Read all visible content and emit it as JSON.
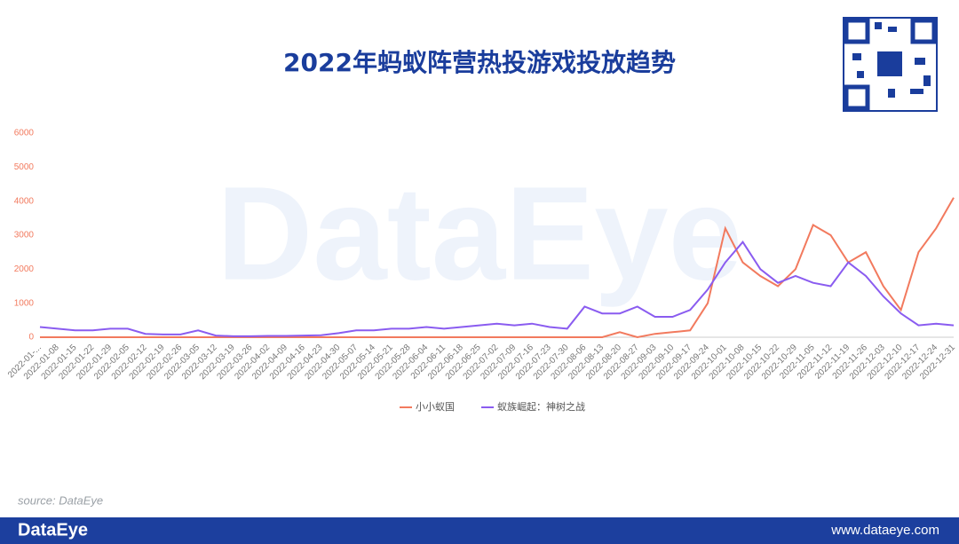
{
  "chart_data": {
    "type": "line",
    "title": "2022年蚂蚁阵营热投游戏投放趋势",
    "categories": [
      "2022-01-...",
      "2022-01-08",
      "2022-01-15",
      "2022-01-22",
      "2022-01-29",
      "2022-02-05",
      "2022-02-12",
      "2022-02-19",
      "2022-02-26",
      "2022-03-05",
      "2022-03-12",
      "2022-03-19",
      "2022-03-26",
      "2022-04-02",
      "2022-04-09",
      "2022-04-16",
      "2022-04-23",
      "2022-04-30",
      "2022-05-07",
      "2022-05-14",
      "2022-05-21",
      "2022-05-28",
      "2022-06-04",
      "2022-06-11",
      "2022-06-18",
      "2022-06-25",
      "2022-07-02",
      "2022-07-09",
      "2022-07-16",
      "2022-07-23",
      "2022-07-30",
      "2022-08-06",
      "2022-08-13",
      "2022-08-20",
      "2022-08-27",
      "2022-09-03",
      "2022-09-10",
      "2022-09-17",
      "2022-09-24",
      "2022-10-01",
      "2022-10-08",
      "2022-10-15",
      "2022-10-22",
      "2022-10-29",
      "2022-11-05",
      "2022-11-12",
      "2022-11-19",
      "2022-11-26",
      "2022-12-03",
      "2022-12-10",
      "2022-12-17",
      "2022-12-24",
      "2022-12-31"
    ],
    "series": [
      {
        "name": "小小蚁国",
        "color": "#f27a5e",
        "values": [
          0,
          0,
          0,
          0,
          0,
          0,
          0,
          0,
          0,
          0,
          0,
          0,
          0,
          0,
          0,
          0,
          0,
          0,
          0,
          0,
          0,
          0,
          0,
          0,
          0,
          0,
          0,
          0,
          0,
          0,
          0,
          0,
          0,
          150,
          0,
          100,
          150,
          200,
          1000,
          3200,
          2200,
          1800,
          1500,
          2000,
          3300,
          3000,
          2200,
          2500,
          1500,
          800,
          2500,
          3200,
          4100
        ]
      },
      {
        "name": "蚁族崛起：神树之战",
        "color": "#8a5cf0",
        "values": [
          300,
          250,
          200,
          200,
          250,
          250,
          100,
          80,
          80,
          200,
          50,
          30,
          30,
          40,
          40,
          50,
          60,
          120,
          200,
          200,
          250,
          250,
          300,
          250,
          300,
          350,
          400,
          350,
          400,
          300,
          250,
          900,
          700,
          700,
          900,
          600,
          600,
          800,
          1400,
          2200,
          2800,
          2000,
          1600,
          1800,
          1600,
          1500,
          2200,
          1800,
          1200,
          700,
          350,
          400,
          350
        ]
      }
    ],
    "ylim": [
      0,
      6000
    ],
    "yticks": [
      0,
      1000,
      2000,
      3000,
      4000,
      5000,
      6000
    ]
  },
  "watermark": "DataEye",
  "source": "source: DataEye",
  "footer": {
    "brand": "DataEye",
    "url": "www.dataeye.com"
  }
}
